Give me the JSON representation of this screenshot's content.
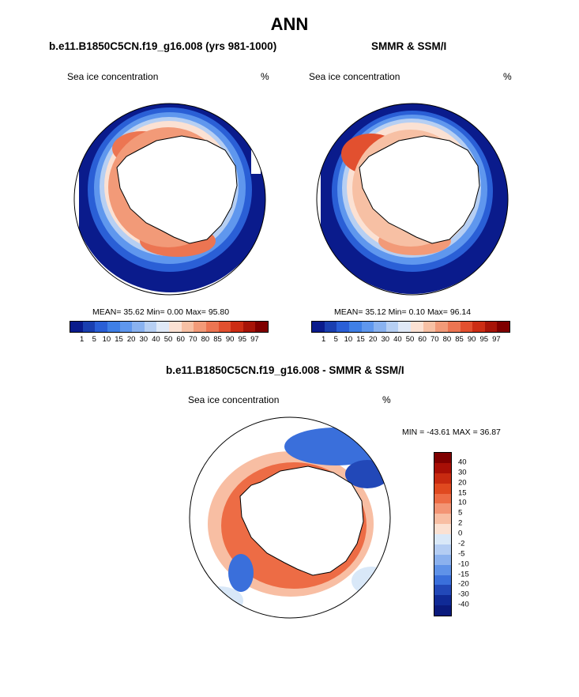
{
  "chart_data": [
    {
      "type": "heatmap",
      "projection": "south-polar-stereographic",
      "title": "b.e11.B1850C5CN.f19_g16.008 (yrs 981-1000)",
      "left_label": "Sea ice concentration",
      "right_label": "%",
      "stats": {
        "mean_label": "MEAN=",
        "mean": "35.62",
        "min_label": "Min=",
        "min": "0.00",
        "max_label": "Max=",
        "max": "95.80"
      },
      "levels": [
        "1",
        "5",
        "10",
        "15",
        "20",
        "30",
        "40",
        "50",
        "60",
        "70",
        "80",
        "85",
        "90",
        "95",
        "97"
      ]
    },
    {
      "type": "heatmap",
      "projection": "south-polar-stereographic",
      "title": "SMMR & SSM/I",
      "left_label": "Sea ice concentration",
      "right_label": "%",
      "stats": {
        "mean_label": "MEAN=",
        "mean": "35.12",
        "min_label": "Min=",
        "min": "0.10",
        "max_label": "Max=",
        "max": "96.14"
      },
      "levels": [
        "1",
        "5",
        "10",
        "15",
        "20",
        "30",
        "40",
        "50",
        "60",
        "70",
        "80",
        "85",
        "90",
        "95",
        "97"
      ]
    },
    {
      "type": "heatmap",
      "projection": "south-polar-stereographic",
      "title": "b.e11.B1850C5CN.f19_g16.008 - SMMR & SSM/I",
      "left_label": "Sea ice concentration",
      "right_label": "%",
      "minmax": "MIN = -43.61 MAX =  36.87",
      "levels": [
        "40",
        "30",
        "20",
        "15",
        "10",
        "5",
        "2",
        "0",
        "-2",
        "-5",
        "-10",
        "-15",
        "-20",
        "-30",
        "-40"
      ]
    }
  ],
  "main_title": "ANN",
  "colors": {
    "abs_scale": [
      "#0a1b8c",
      "#1a3fb0",
      "#2a5fd6",
      "#3f7fe6",
      "#5f97ee",
      "#89b2f0",
      "#b6cff3",
      "#dfe9f7",
      "#fbe1d3",
      "#f7c0a4",
      "#f29a78",
      "#ec7552",
      "#e2502f",
      "#cc2d14",
      "#a71408",
      "#7f0000"
    ],
    "diff_scale": [
      "#7f0000",
      "#a80f06",
      "#c82a10",
      "#e0491f",
      "#ed6c45",
      "#f39575",
      "#f8bea3",
      "#fbe1d2",
      "#d9e8f8",
      "#b4cdf3",
      "#8bb1ee",
      "#5f92e8",
      "#3a6fdb",
      "#2248b8",
      "#102a96",
      "#0a1a7c"
    ]
  }
}
